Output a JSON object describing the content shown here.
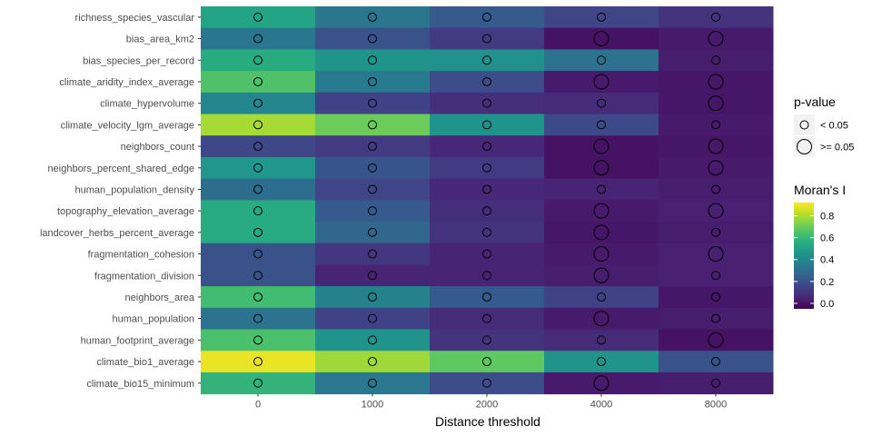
{
  "chart_data": {
    "type": "heatmap",
    "title": "",
    "xlabel": "Distance threshold",
    "ylabel": "",
    "x_categories": [
      "0",
      "1000",
      "2000",
      "4000",
      "8000"
    ],
    "y_categories": [
      "richness_species_vascular",
      "bias_area_km2",
      "bias_species_per_record",
      "climate_aridity_index_average",
      "climate_hypervolume",
      "climate_velocity_lgm_average",
      "neighbors_count",
      "neighbors_percent_shared_edge",
      "human_population_density",
      "topography_elevation_average",
      "landcover_herbs_percent_average",
      "fragmentation_cohesion",
      "fragmentation_division",
      "neighbors_area",
      "human_population",
      "human_footprint_average",
      "climate_bio1_average",
      "climate_bio15_minimum"
    ],
    "moran_i": [
      [
        0.52,
        0.33,
        0.23,
        0.15,
        0.1
      ],
      [
        0.33,
        0.2,
        0.12,
        0.0,
        0.02
      ],
      [
        0.55,
        0.45,
        0.44,
        0.32,
        0.03
      ],
      [
        0.65,
        0.35,
        0.18,
        0.02,
        0.01
      ],
      [
        0.4,
        0.14,
        0.08,
        0.07,
        0.01
      ],
      [
        0.79,
        0.7,
        0.45,
        0.17,
        0.02
      ],
      [
        0.16,
        0.12,
        0.06,
        0.0,
        0.01
      ],
      [
        0.46,
        0.21,
        0.12,
        0.0,
        0.02
      ],
      [
        0.3,
        0.15,
        0.06,
        0.05,
        0.03
      ],
      [
        0.55,
        0.23,
        0.08,
        0.02,
        0.04
      ],
      [
        0.55,
        0.27,
        0.1,
        0.01,
        0.03
      ],
      [
        0.2,
        0.11,
        0.05,
        0.02,
        0.04
      ],
      [
        0.2,
        0.05,
        0.05,
        0.03,
        0.04
      ],
      [
        0.62,
        0.38,
        0.23,
        0.14,
        0.01
      ],
      [
        0.32,
        0.14,
        0.07,
        0.02,
        0.03
      ],
      [
        0.64,
        0.45,
        0.1,
        0.07,
        0.0
      ],
      [
        0.89,
        0.78,
        0.68,
        0.45,
        0.2
      ],
      [
        0.58,
        0.34,
        0.18,
        0.02,
        0.03
      ]
    ],
    "p_value_class": [
      [
        "< 0.05",
        "< 0.05",
        "< 0.05",
        "< 0.05",
        "< 0.05"
      ],
      [
        "< 0.05",
        "< 0.05",
        "< 0.05",
        ">= 0.05",
        ">= 0.05"
      ],
      [
        "< 0.05",
        "< 0.05",
        "< 0.05",
        "< 0.05",
        "< 0.05"
      ],
      [
        "< 0.05",
        "< 0.05",
        "< 0.05",
        ">= 0.05",
        ">= 0.05"
      ],
      [
        "< 0.05",
        "< 0.05",
        "< 0.05",
        "< 0.05",
        ">= 0.05"
      ],
      [
        "< 0.05",
        "< 0.05",
        "< 0.05",
        "< 0.05",
        "< 0.05"
      ],
      [
        "< 0.05",
        "< 0.05",
        "< 0.05",
        ">= 0.05",
        ">= 0.05"
      ],
      [
        "< 0.05",
        "< 0.05",
        "< 0.05",
        ">= 0.05",
        ">= 0.05"
      ],
      [
        "< 0.05",
        "< 0.05",
        "< 0.05",
        "< 0.05",
        "< 0.05"
      ],
      [
        "< 0.05",
        "< 0.05",
        "< 0.05",
        ">= 0.05",
        ">= 0.05"
      ],
      [
        "< 0.05",
        "< 0.05",
        "< 0.05",
        ">= 0.05",
        "< 0.05"
      ],
      [
        "< 0.05",
        "< 0.05",
        "< 0.05",
        ">= 0.05",
        ">= 0.05"
      ],
      [
        "< 0.05",
        "< 0.05",
        "< 0.05",
        ">= 0.05",
        "< 0.05"
      ],
      [
        "< 0.05",
        "< 0.05",
        "< 0.05",
        "< 0.05",
        "< 0.05"
      ],
      [
        "< 0.05",
        "< 0.05",
        "< 0.05",
        ">= 0.05",
        "< 0.05"
      ],
      [
        "< 0.05",
        "< 0.05",
        "< 0.05",
        "< 0.05",
        ">= 0.05"
      ],
      [
        "< 0.05",
        "< 0.05",
        "< 0.05",
        "< 0.05",
        "< 0.05"
      ],
      [
        "< 0.05",
        "< 0.05",
        "< 0.05",
        ">= 0.05",
        "< 0.05"
      ]
    ],
    "fill_scale": "viridis",
    "fill_range": [
      -0.05,
      0.92
    ],
    "legend_size": {
      "title": "p-value",
      "labels": [
        "< 0.05",
        ">= 0.05"
      ]
    },
    "legend_fill": {
      "title": "Moran's I",
      "breaks": [
        0.0,
        0.2,
        0.4,
        0.6,
        0.8
      ],
      "labels": [
        "0.0",
        "0.2",
        "0.4",
        "0.6",
        "0.8"
      ]
    },
    "legend_placement": "right",
    "grid": false
  }
}
